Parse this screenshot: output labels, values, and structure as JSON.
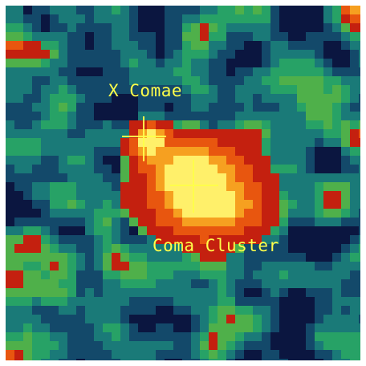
{
  "image": {
    "subject": "x-ray-sky-map",
    "colormap": [
      "#0b1640",
      "#13496a",
      "#1a7a78",
      "#27a266",
      "#4fb04a",
      "#c4200f",
      "#e8560f",
      "#f6a020",
      "#fff06a"
    ],
    "label_color": "#ffff4a",
    "marker_color": "#ffff4a"
  },
  "annotations": {
    "x_comae": "X Comae",
    "coma_cluster": "Coma Cluster"
  }
}
